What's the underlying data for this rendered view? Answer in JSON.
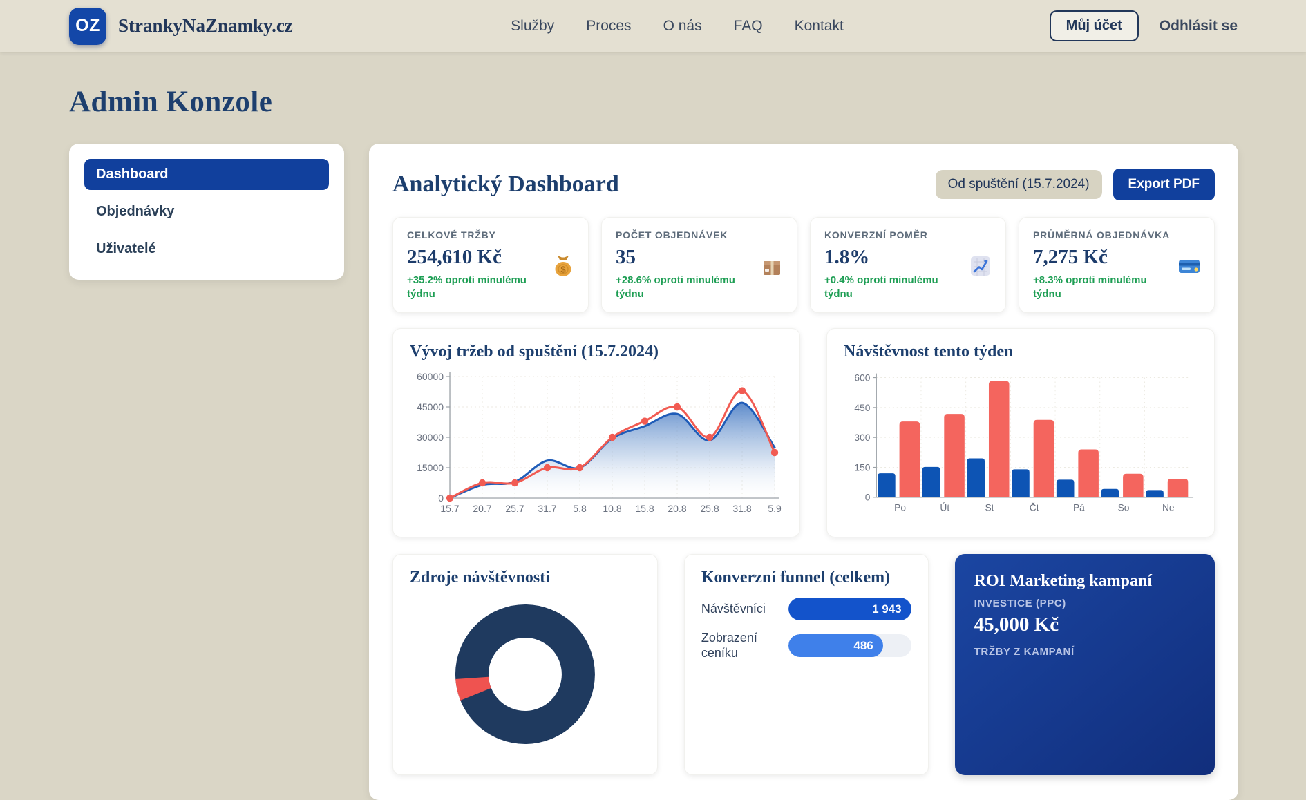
{
  "brand": {
    "logo_text": "OZ",
    "name": "StrankyNaZnamky.cz"
  },
  "nav": {
    "items": [
      "Služby",
      "Proces",
      "O nás",
      "FAQ",
      "Kontakt"
    ],
    "account_button": "Můj účet",
    "logout_link": "Odhlásit se"
  },
  "page_title": "Admin Konzole",
  "sidebar": {
    "items": [
      {
        "label": "Dashboard",
        "active": true
      },
      {
        "label": "Objednávky",
        "active": false
      },
      {
        "label": "Uživatelé",
        "active": false
      }
    ]
  },
  "dashboard": {
    "title": "Analytický Dashboard",
    "period_chip": "Od spuštění (15.7.2024)",
    "export_button": "Export PDF",
    "kpis": [
      {
        "label": "CELKOVÉ TRŽBY",
        "value": "254,610 Kč",
        "delta": "+35.2% oproti minulému týdnu",
        "icon": "money-bag-icon"
      },
      {
        "label": "POČET OBJEDNÁVEK",
        "value": "35",
        "delta": "+28.6% oproti minulému týdnu",
        "icon": "package-icon"
      },
      {
        "label": "KONVERZNÍ POMĚR",
        "value": "1.8%",
        "delta": "+0.4% oproti minulému týdnu",
        "icon": "chart-increasing-icon"
      },
      {
        "label": "PRŮMĚRNÁ OBJEDNÁVKA",
        "value": "7,275 Kč",
        "delta": "+8.3% oproti minulému týdnu",
        "icon": "credit-card-icon"
      }
    ]
  },
  "chart_data": [
    {
      "type": "line",
      "title": "Vývoj tržeb od spuštění (15.7.2024)",
      "x": [
        "15.7",
        "20.7",
        "25.7",
        "31.7",
        "5.8",
        "10.8",
        "15.8",
        "20.8",
        "25.8",
        "31.8",
        "5.9"
      ],
      "series": [
        {
          "name": "blue-area-series",
          "color": "#1f5cb8",
          "area": true,
          "markers": false,
          "values": [
            0,
            6500,
            8000,
            18500,
            15000,
            29500,
            35500,
            41500,
            28500,
            47000,
            25000
          ]
        },
        {
          "name": "red-line-series",
          "color": "#f15b52",
          "area": false,
          "markers": true,
          "values": [
            0,
            7500,
            7500,
            15000,
            15000,
            30000,
            38000,
            45000,
            30000,
            53000,
            22500
          ]
        }
      ],
      "ylim": [
        0,
        60000
      ],
      "yticks": [
        0,
        15000,
        30000,
        45000,
        60000
      ],
      "grid": true,
      "legend": "none"
    },
    {
      "type": "bar",
      "title": "Návštěvnost tento týden",
      "categories": [
        "Po",
        "Út",
        "St",
        "Čt",
        "Pá",
        "So",
        "Ne"
      ],
      "series": [
        {
          "name": "blue-bar-series",
          "color": "#0d54b4",
          "values": [
            120,
            152,
            195,
            140,
            88,
            42,
            36
          ]
        },
        {
          "name": "red-bar-series",
          "color": "#f4655e",
          "values": [
            380,
            418,
            583,
            388,
            240,
            118,
            93
          ]
        }
      ],
      "ylim": [
        0,
        600
      ],
      "yticks": [
        0,
        150,
        300,
        450,
        600
      ],
      "grid": true,
      "legend": "none"
    },
    {
      "type": "pie",
      "title": "Zdroje návštěvnosti",
      "donut": true,
      "partially_visible": true,
      "slices": [
        {
          "name": "navy-slice",
          "color": "#1f3a5f",
          "pct": 95
        },
        {
          "name": "red-slice",
          "color": "#ef5350",
          "pct": 5
        }
      ]
    }
  ],
  "funnel": {
    "title": "Konverzní funnel (celkem)",
    "rows": [
      {
        "label": "Návštěvníci",
        "value": "1 943",
        "pct": 100,
        "color": "#1353cb"
      },
      {
        "label": "Zobrazení ceníku",
        "value": "486",
        "pct": 77,
        "color": "#3f80ea"
      }
    ]
  },
  "roi": {
    "title": "ROI Marketing kampaní",
    "investment_label": "INVESTICE (PPC)",
    "investment_value": "45,000 Kč",
    "partial_next_label": "TRŽBY Z KAMPANÍ"
  },
  "colors": {
    "primary_blue": "#11409d",
    "bar_blue": "#0d54b4",
    "bar_red": "#f4655e",
    "line_blue": "#1f5cb8",
    "line_red": "#f15b52",
    "green": "#1e9e54",
    "navy_text": "#1d3f6e",
    "donut_navy": "#1f3a5f",
    "donut_red": "#ef5350",
    "page_bg": "#dad6c6",
    "header_bg": "#e4e0d2"
  }
}
